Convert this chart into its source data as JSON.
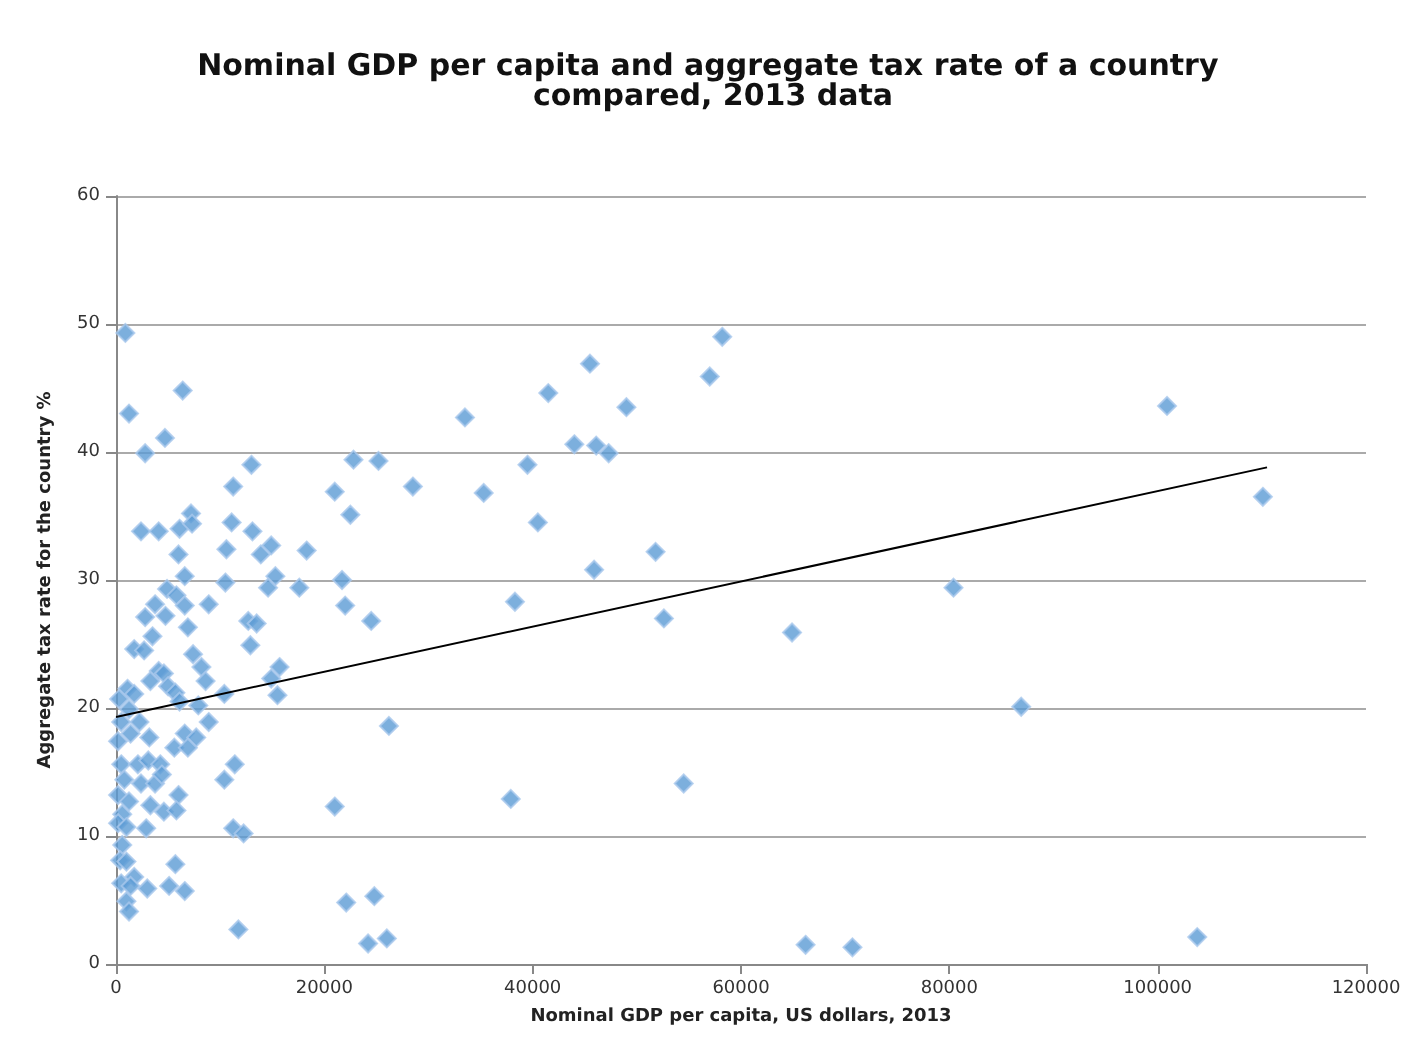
{
  "chart_data": {
    "type": "scatter",
    "title": "Nominal GDP per capita and aggregate tax rate of a country compared, 2013 data",
    "xlabel": "Nominal GDP per capita, US dollars, 2013",
    "ylabel": "Aggregate tax rate for the country %",
    "xlim": [
      0,
      120000
    ],
    "xticks": [
      0,
      20000,
      40000,
      60000,
      80000,
      100000,
      120000
    ],
    "ylim": [
      0,
      60
    ],
    "yticks": [
      0,
      10,
      20,
      30,
      40,
      50,
      60
    ],
    "grid": "y",
    "series": [
      {
        "color": "#5b9bd5",
        "marker": "diamond",
        "x": [
          900,
          1250,
          4700,
          2800,
          6400,
          13000,
          11250,
          2400,
          4100,
          6100,
          7200,
          7300,
          11100,
          13100,
          13900,
          10600,
          14900,
          6000,
          6600,
          10500,
          15300,
          14600,
          18300,
          17600,
          4900,
          5800,
          3750,
          6600,
          6900,
          8900,
          4750,
          2800,
          3500,
          1750,
          2700,
          12700,
          13500,
          12900,
          7400,
          8200,
          15700,
          4100,
          4600,
          3300,
          5000,
          5700,
          8600,
          1100,
          1750,
          300,
          10400,
          14900,
          15500,
          6100,
          7900,
          1250,
          500,
          8900,
          2250,
          200,
          1400,
          3200,
          6600,
          7700,
          5600,
          6900,
          500,
          2100,
          3100,
          4250,
          11400,
          800,
          2400,
          3750,
          4400,
          10400,
          200,
          1250,
          3300,
          6000,
          4600,
          5800,
          600,
          200,
          1000,
          2900,
          11250,
          12250,
          600,
          400,
          1000,
          1750,
          500,
          1400,
          3000,
          5100,
          6600,
          5700,
          1000,
          1250,
          11750,
          45500,
          41500,
          49000,
          33500,
          44000,
          46100,
          47300,
          22800,
          25200,
          39500,
          21000,
          28500,
          35300,
          22500,
          40500,
          51800,
          21700,
          45900,
          22000,
          38300,
          24500,
          52600,
          26200,
          21000,
          37900,
          54500,
          22100,
          24800,
          24200,
          26000,
          58200,
          57000,
          100900,
          110100,
          80400,
          64900,
          86900,
          66200,
          70700,
          103800
        ],
        "values": [
          49.3,
          43.0,
          41.1,
          39.9,
          44.8,
          39.0,
          37.3,
          33.8,
          33.8,
          34.0,
          35.2,
          34.4,
          34.5,
          33.8,
          32.0,
          32.4,
          32.7,
          32.0,
          30.3,
          29.8,
          30.3,
          29.4,
          32.3,
          29.4,
          29.3,
          28.8,
          28.1,
          28.0,
          26.3,
          28.1,
          27.2,
          27.1,
          25.6,
          24.6,
          24.5,
          26.8,
          26.6,
          24.9,
          24.2,
          23.2,
          23.2,
          22.9,
          22.7,
          22.1,
          21.7,
          21.2,
          22.1,
          21.5,
          21.1,
          20.7,
          21.1,
          22.3,
          21.0,
          20.5,
          20.2,
          19.9,
          18.9,
          18.9,
          18.9,
          17.4,
          18.0,
          17.7,
          18.0,
          17.7,
          16.9,
          16.9,
          15.6,
          15.6,
          15.9,
          15.6,
          15.6,
          14.4,
          14.1,
          14.1,
          14.8,
          14.4,
          13.2,
          12.7,
          12.4,
          13.2,
          11.9,
          12.0,
          11.7,
          11.0,
          10.7,
          10.6,
          10.6,
          10.2,
          9.3,
          8.1,
          8.0,
          6.8,
          6.3,
          6.1,
          5.9,
          6.1,
          5.7,
          7.8,
          4.9,
          4.1,
          2.7,
          46.9,
          44.6,
          43.5,
          42.7,
          40.6,
          40.5,
          39.9,
          39.4,
          39.3,
          39.0,
          36.9,
          37.3,
          36.8,
          35.1,
          34.5,
          32.2,
          30.0,
          30.8,
          28.0,
          28.3,
          26.8,
          27.0,
          18.6,
          12.3,
          12.9,
          14.1,
          4.8,
          5.3,
          1.6,
          2.0,
          49.0,
          45.9,
          43.6,
          36.5,
          29.4,
          25.9,
          20.1,
          1.5,
          1.3,
          2.1
        ]
      },
      {
        "type": "line",
        "color": "#000000",
        "marker": "none",
        "x": [
          0,
          110500
        ],
        "values": [
          19.3,
          38.8
        ]
      }
    ]
  }
}
